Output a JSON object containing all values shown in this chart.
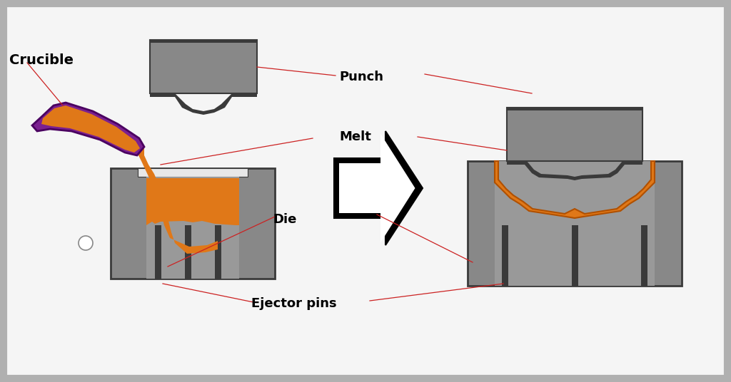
{
  "bg_color": "#b0b0b0",
  "panel_color": "#f5f5f5",
  "gray_dark": "#3a3a3a",
  "gray_mid": "#888888",
  "gray_light": "#aaaaaa",
  "gray_inner": "#999999",
  "orange": "#e07818",
  "orange_edge": "#b05000",
  "purple": "#7b2090",
  "purple_edge": "#4a0060",
  "black": "#111111",
  "annotation_line_color": "#cc2222",
  "labels": {
    "crucible": "Crucible",
    "punch": "Punch",
    "melt": "Melt",
    "die": "Die",
    "ejector_pins": "Ejector pins"
  },
  "label_fontsize": 13
}
